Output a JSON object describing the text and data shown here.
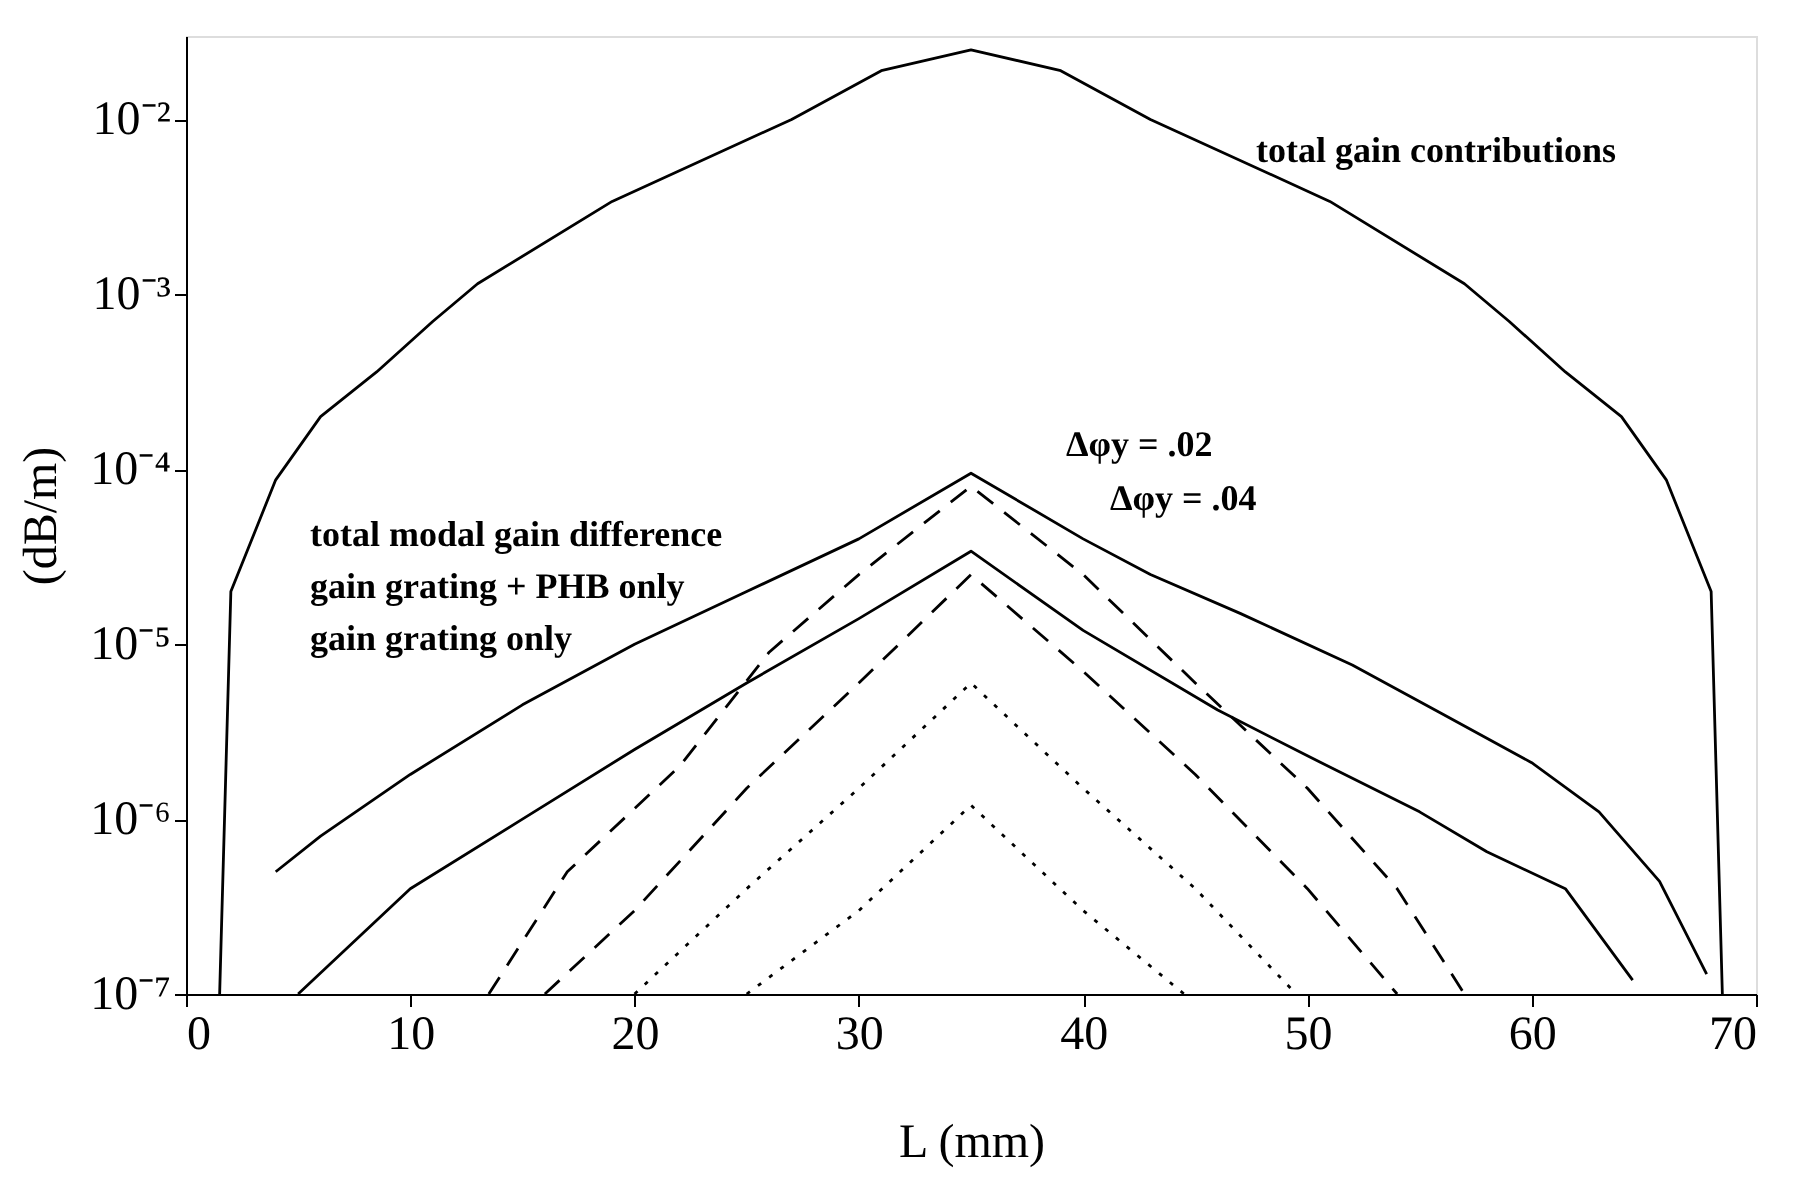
{
  "chart_data": {
    "type": "line",
    "xlabel": "L (mm)",
    "ylabel": "(dB/m)",
    "log": "y",
    "xlim": [
      0,
      70
    ],
    "xticks": [
      0,
      10,
      20,
      30,
      40,
      50,
      60,
      70
    ],
    "ylim": [
      1e-07,
      0.03
    ],
    "yticks": [
      {
        "value": 1e-07,
        "label": "10⁻⁷"
      },
      {
        "value": 1e-06,
        "label": "10⁻⁶"
      },
      {
        "value": 1e-05,
        "label": "10⁻⁵"
      },
      {
        "value": 0.0001,
        "label": "10⁻⁴"
      },
      {
        "value": 0.001,
        "label": "10⁻³"
      },
      {
        "value": 0.01,
        "label": "10⁻²"
      }
    ],
    "grid": false,
    "marker": "none",
    "series": [
      {
        "color": "#000000",
        "line_style": "solid",
        "x": [
          1.5,
          2,
          4,
          6,
          8.5,
          11,
          13,
          19,
          27,
          31,
          35,
          39,
          43,
          51,
          57,
          59,
          61.5,
          64,
          66,
          68,
          68.5
        ],
        "values": [
          1e-07,
          2e-05,
          8.7e-05,
          0.0002,
          0.00036,
          0.0007,
          0.00115,
          0.0034,
          0.01,
          0.019,
          0.025,
          0.019,
          0.01,
          0.0034,
          0.00115,
          0.0007,
          0.00036,
          0.0002,
          8.7e-05,
          2e-05,
          1e-07
        ]
      },
      {
        "color": "#000000",
        "line_style": "solid",
        "x": [
          4,
          6,
          10,
          15,
          20,
          25,
          30,
          35,
          40,
          43,
          47,
          52,
          56,
          60,
          63,
          65.7,
          67.8
        ],
        "values": [
          5e-07,
          8e-07,
          1.8e-06,
          4.5e-06,
          1e-05,
          2e-05,
          4e-05,
          9.5e-05,
          4e-05,
          2.5e-05,
          1.5e-05,
          7.6e-06,
          4e-06,
          2.1e-06,
          1.1e-06,
          4.4e-07,
          1.3e-07
        ]
      },
      {
        "color": "#000000",
        "line_style": "solid",
        "x": [
          5,
          10,
          15,
          20,
          25,
          30,
          35,
          40,
          46,
          50,
          55,
          58,
          61.5,
          64.5
        ],
        "values": [
          1e-07,
          4e-07,
          1e-06,
          2.5e-06,
          6e-06,
          1.4e-05,
          3.4e-05,
          1.2e-05,
          4.2e-06,
          2.3e-06,
          1.1e-06,
          6.5e-07,
          4e-07,
          1.2e-07
        ]
      },
      {
        "color": "#000000",
        "line_style": "dashed",
        "x": [
          13.5,
          17,
          22,
          26,
          30,
          35,
          40,
          45,
          50,
          54,
          57
        ],
        "values": [
          1e-07,
          5e-07,
          2e-06,
          9e-06,
          2.5e-05,
          8e-05,
          2.5e-05,
          6e-06,
          1.5e-06,
          4e-07,
          1e-07
        ]
      },
      {
        "color": "#000000",
        "line_style": "dashed",
        "x": [
          16,
          20,
          25,
          30,
          35,
          40,
          45,
          50,
          54
        ],
        "values": [
          1e-07,
          3e-07,
          1.5e-06,
          6e-06,
          2.5e-05,
          7e-06,
          1.8e-06,
          4e-07,
          1e-07
        ]
      },
      {
        "color": "#000000",
        "line_style": "dotted",
        "x": [
          20,
          25,
          30,
          35,
          40,
          45,
          49.5
        ],
        "values": [
          1e-07,
          4e-07,
          1.5e-06,
          6e-06,
          1.5e-06,
          4e-07,
          1e-07
        ]
      },
      {
        "color": "#000000",
        "line_style": "dotted",
        "x": [
          25,
          30,
          35,
          40,
          44.5
        ],
        "values": [
          1e-07,
          3e-07,
          1.2e-06,
          3e-07,
          1e-07
        ]
      }
    ],
    "annotations": [
      "total gain contributions",
      "total modal gain difference",
      "gain grating + PHB only",
      "gain grating only",
      "Δφy = .02",
      "Δφy = .04"
    ]
  }
}
